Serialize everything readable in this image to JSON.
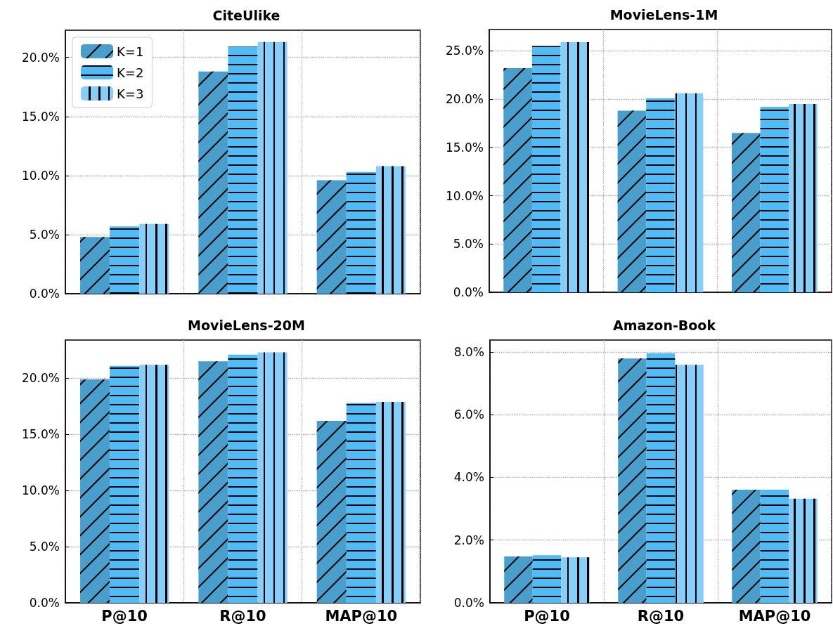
{
  "chart_data": [
    {
      "type": "bar",
      "title": "CiteUlike",
      "categories": [
        null,
        null,
        null
      ],
      "series": [
        {
          "name": "K=1",
          "color": "#4a9ecc",
          "values": [
            4.8,
            18.8,
            9.6
          ]
        },
        {
          "name": "K=2",
          "color": "#4fbcf7",
          "values": [
            5.7,
            20.9,
            10.3
          ]
        },
        {
          "name": "K=3",
          "color": "#87cefa",
          "values": [
            5.9,
            21.3,
            10.8
          ]
        }
      ],
      "ylim": [
        0,
        22.3
      ],
      "yticks": [
        {
          "value": 0,
          "label": "0.0%"
        },
        {
          "value": 5,
          "label": "5.0%"
        },
        {
          "value": 10,
          "label": "10.0%"
        },
        {
          "value": 15,
          "label": "15.0%"
        },
        {
          "value": 20,
          "label": "20.0%"
        }
      ],
      "grid": true,
      "legend": "top left",
      "tick_labels": "y"
    },
    {
      "type": "bar",
      "title": "MovieLens-1M",
      "categories": [
        null,
        null,
        null
      ],
      "series": [
        {
          "color": "#4a9ecc",
          "values": [
            23.2,
            18.8,
            16.5
          ]
        },
        {
          "color": "#4fbcf7",
          "values": [
            25.5,
            20.1,
            19.2
          ]
        },
        {
          "color": "#87cefa",
          "values": [
            25.9,
            20.6,
            19.5
          ]
        }
      ],
      "ylim": [
        0,
        27.2
      ],
      "yticks": [
        {
          "value": 0,
          "label": "0.0%"
        },
        {
          "value": 5,
          "label": "5.0%"
        },
        {
          "value": 10,
          "label": "10.0%"
        },
        {
          "value": 15,
          "label": "15.0%"
        },
        {
          "value": 20,
          "label": "20.0%"
        },
        {
          "value": 25,
          "label": "25.0%"
        }
      ],
      "grid": true,
      "tick_labels": "y"
    },
    {
      "type": "bar",
      "title": "MovieLens-20M",
      "categories": [
        "P@10",
        "R@10",
        "MAP@10"
      ],
      "series": [
        {
          "color": "#4a9ecc",
          "values": [
            19.9,
            21.5,
            16.2
          ]
        },
        {
          "color": "#4fbcf7",
          "values": [
            21.1,
            22.1,
            17.8
          ]
        },
        {
          "color": "#87cefa",
          "values": [
            21.2,
            22.3,
            17.9
          ]
        }
      ],
      "ylim": [
        0,
        23.4
      ],
      "yticks": [
        {
          "value": 0,
          "label": "0.0%"
        },
        {
          "value": 5,
          "label": "5.0%"
        },
        {
          "value": 10,
          "label": "10.0%"
        },
        {
          "value": 15,
          "label": "15.0%"
        },
        {
          "value": 20,
          "label": "20.0%"
        }
      ],
      "grid": true
    },
    {
      "type": "bar",
      "title": "Amazon-Book",
      "categories": [
        "P@10",
        "R@10",
        "MAP@10"
      ],
      "series": [
        {
          "color": "#4a9ecc",
          "values": [
            1.48,
            7.79,
            3.61
          ]
        },
        {
          "color": "#4fbcf7",
          "values": [
            1.52,
            7.96,
            3.61
          ]
        },
        {
          "color": "#87cefa",
          "values": [
            1.45,
            7.59,
            3.32
          ]
        }
      ],
      "ylim": [
        0,
        8.38
      ],
      "yticks": [
        {
          "value": 0,
          "label": "0.0%"
        },
        {
          "value": 2,
          "label": "2.0%"
        },
        {
          "value": 4,
          "label": "4.0%"
        },
        {
          "value": 6,
          "label": "6.0%"
        },
        {
          "value": 8,
          "label": "8.0%"
        }
      ],
      "grid": true
    }
  ]
}
